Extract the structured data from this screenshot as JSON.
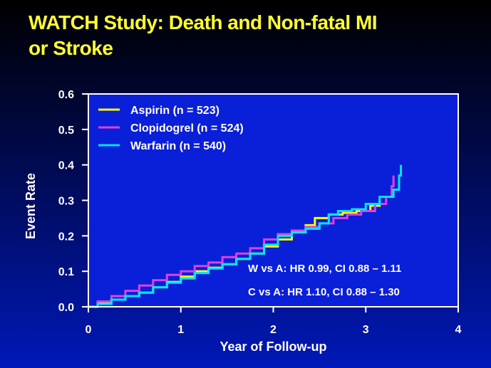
{
  "slide": {
    "title_line1": "WATCH Study: Death and Non-fatal MI",
    "title_line2": "or Stroke"
  },
  "colors": {
    "title": "#ffff33",
    "plot_background": "#0a1fd8",
    "frame": "#ffffff"
  },
  "chart_data": {
    "type": "line",
    "title": "",
    "xlabel": "Year of Follow-up",
    "ylabel": "Event Rate",
    "xlim": [
      0,
      4
    ],
    "ylim": [
      0,
      0.6
    ],
    "xticks": [
      0,
      1,
      2,
      3,
      4
    ],
    "yticks": [
      0.0,
      0.1,
      0.2,
      0.3,
      0.4,
      0.5,
      0.6
    ],
    "ytick_labels": [
      "0.0",
      "0.1",
      "0.2",
      "0.3",
      "0.4",
      "0.5",
      "0.6"
    ],
    "legend_position": "top-left",
    "grid": false,
    "series": [
      {
        "name": "Aspirin (n = 523)",
        "color": "#ffff00",
        "x": [
          0,
          0.1,
          0.25,
          0.4,
          0.55,
          0.7,
          0.85,
          1.0,
          1.15,
          1.3,
          1.45,
          1.6,
          1.75,
          1.9,
          2.05,
          2.2,
          2.35,
          2.45,
          2.6,
          2.75,
          2.9,
          3.05,
          3.15
        ],
        "y": [
          0,
          0.01,
          0.02,
          0.03,
          0.04,
          0.055,
          0.07,
          0.085,
          0.1,
          0.11,
          0.12,
          0.135,
          0.15,
          0.17,
          0.19,
          0.21,
          0.23,
          0.25,
          0.26,
          0.265,
          0.27,
          0.285,
          0.3
        ]
      },
      {
        "name": "Clopidogrel (n = 524)",
        "color": "#e040e0",
        "x": [
          0,
          0.1,
          0.25,
          0.4,
          0.55,
          0.7,
          0.85,
          1.0,
          1.15,
          1.3,
          1.45,
          1.6,
          1.75,
          1.9,
          2.05,
          2.2,
          2.35,
          2.5,
          2.65,
          2.8,
          2.95,
          3.1,
          3.22,
          3.28,
          3.3
        ],
        "y": [
          0,
          0.015,
          0.03,
          0.045,
          0.06,
          0.075,
          0.09,
          0.1,
          0.115,
          0.125,
          0.14,
          0.15,
          0.165,
          0.19,
          0.205,
          0.215,
          0.225,
          0.235,
          0.25,
          0.26,
          0.27,
          0.29,
          0.31,
          0.34,
          0.37
        ]
      },
      {
        "name": "Warfarin (n = 540)",
        "color": "#00e5ff",
        "x": [
          0,
          0.1,
          0.25,
          0.4,
          0.55,
          0.7,
          0.85,
          1.0,
          1.15,
          1.3,
          1.45,
          1.6,
          1.75,
          1.9,
          2.05,
          2.2,
          2.35,
          2.5,
          2.6,
          2.7,
          2.85,
          3.0,
          3.15,
          3.3,
          3.36,
          3.38
        ],
        "y": [
          0,
          0.008,
          0.02,
          0.03,
          0.04,
          0.055,
          0.068,
          0.08,
          0.095,
          0.108,
          0.12,
          0.135,
          0.15,
          0.175,
          0.2,
          0.21,
          0.22,
          0.235,
          0.26,
          0.27,
          0.275,
          0.29,
          0.31,
          0.33,
          0.37,
          0.4
        ]
      }
    ],
    "annotations": [
      "W vs A: HR 0.99, CI 0.88 – 1.11",
      "C vs A:  HR 1.10, CI 0.88 – 1.30"
    ]
  }
}
